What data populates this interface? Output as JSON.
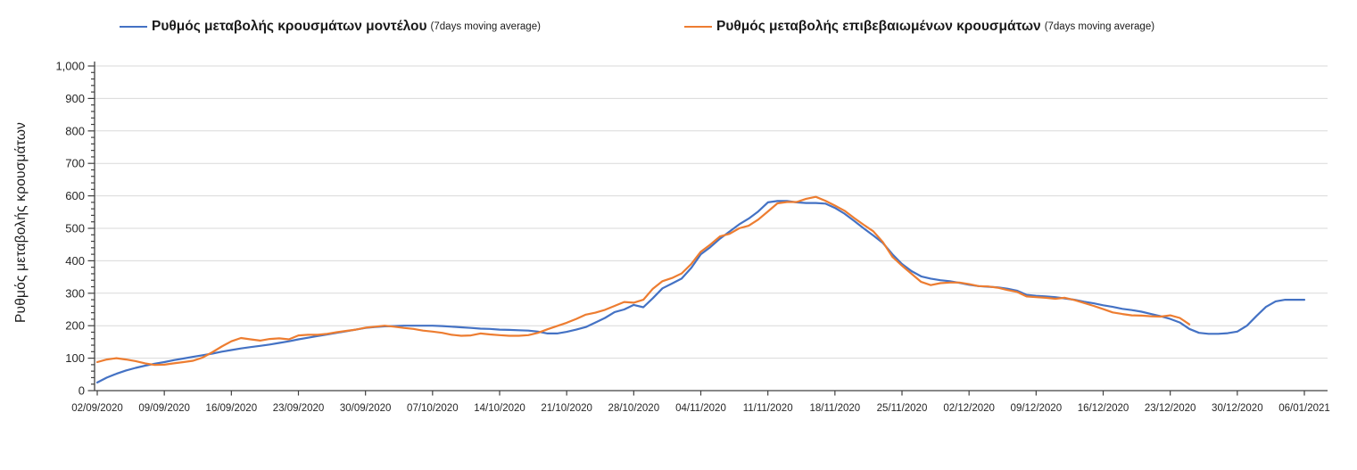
{
  "legend": {
    "items": [
      {
        "label": "Ρυθμός μεταβολής κρουσμάτων μοντέλου",
        "sub": "(7days moving average)",
        "color": "#4472C4"
      },
      {
        "label": "Ρυθμός μεταβολής επιβεβαιωμένων κρουσμάτων",
        "sub": "(7days moving average)",
        "color": "#ED7D31"
      }
    ]
  },
  "y_axis": {
    "title": "Ρυθμός μεταβολής κρουσμάτων",
    "tick_labels": [
      "0",
      "100",
      "200",
      "300",
      "400",
      "500",
      "600",
      "700",
      "800",
      "900",
      "1,000"
    ],
    "min": 0,
    "max": 1000,
    "major_step": 100,
    "minor_step": 20
  },
  "x_axis": {
    "tick_labels": [
      "02/09/2020",
      "09/09/2020",
      "16/09/2020",
      "23/09/2020",
      "30/09/2020",
      "07/10/2020",
      "14/10/2020",
      "21/10/2020",
      "28/10/2020",
      "04/11/2020",
      "11/11/2020",
      "18/11/2020",
      "25/11/2020",
      "02/12/2020",
      "09/12/2020",
      "16/12/2020",
      "23/12/2020",
      "30/12/2020",
      "06/01/2021"
    ]
  },
  "colors": {
    "model_line": "#4472C4",
    "confirmed_line": "#ED7D31",
    "grid": "#D9D9D9",
    "axis": "#404040",
    "text": "#262626"
  },
  "chart_data": {
    "type": "line",
    "title": "",
    "xlabel": "",
    "ylabel": "Ρυθμός μεταβολής κρουσμάτων",
    "ylim": [
      0,
      1000
    ],
    "grid": "horizontal-only",
    "legend_position": "top",
    "x": [
      "02/09/2020",
      "03/09/2020",
      "04/09/2020",
      "05/09/2020",
      "06/09/2020",
      "07/09/2020",
      "08/09/2020",
      "09/09/2020",
      "10/09/2020",
      "11/09/2020",
      "12/09/2020",
      "13/09/2020",
      "14/09/2020",
      "15/09/2020",
      "16/09/2020",
      "17/09/2020",
      "18/09/2020",
      "19/09/2020",
      "20/09/2020",
      "21/09/2020",
      "22/09/2020",
      "23/09/2020",
      "24/09/2020",
      "25/09/2020",
      "26/09/2020",
      "27/09/2020",
      "28/09/2020",
      "29/09/2020",
      "30/09/2020",
      "01/10/2020",
      "02/10/2020",
      "03/10/2020",
      "04/10/2020",
      "05/10/2020",
      "06/10/2020",
      "07/10/2020",
      "08/10/2020",
      "09/10/2020",
      "10/10/2020",
      "11/10/2020",
      "12/10/2020",
      "13/10/2020",
      "14/10/2020",
      "15/10/2020",
      "16/10/2020",
      "17/10/2020",
      "18/10/2020",
      "19/10/2020",
      "20/10/2020",
      "21/10/2020",
      "22/10/2020",
      "23/10/2020",
      "24/10/2020",
      "25/10/2020",
      "26/10/2020",
      "27/10/2020",
      "28/10/2020",
      "29/10/2020",
      "30/10/2020",
      "31/10/2020",
      "01/11/2020",
      "02/11/2020",
      "03/11/2020",
      "04/11/2020",
      "05/11/2020",
      "06/11/2020",
      "07/11/2020",
      "08/11/2020",
      "09/11/2020",
      "10/11/2020",
      "11/11/2020",
      "12/11/2020",
      "13/11/2020",
      "14/11/2020",
      "15/11/2020",
      "16/11/2020",
      "17/11/2020",
      "18/11/2020",
      "19/11/2020",
      "20/11/2020",
      "21/11/2020",
      "22/11/2020",
      "23/11/2020",
      "24/11/2020",
      "25/11/2020",
      "26/11/2020",
      "27/11/2020",
      "28/11/2020",
      "29/11/2020",
      "30/11/2020",
      "01/12/2020",
      "02/12/2020",
      "03/12/2020",
      "04/12/2020",
      "05/12/2020",
      "06/12/2020",
      "07/12/2020",
      "08/12/2020",
      "09/12/2020",
      "10/12/2020",
      "11/12/2020",
      "12/12/2020",
      "13/12/2020",
      "14/12/2020",
      "15/12/2020",
      "16/12/2020",
      "17/12/2020",
      "18/12/2020",
      "19/12/2020",
      "20/12/2020",
      "21/12/2020",
      "22/12/2020",
      "23/12/2020",
      "24/12/2020",
      "25/12/2020",
      "26/12/2020",
      "27/12/2020",
      "28/12/2020",
      "29/12/2020",
      "30/12/2020",
      "31/12/2020",
      "01/01/2021",
      "02/01/2021",
      "03/01/2021",
      "04/01/2021",
      "05/01/2021",
      "06/01/2021"
    ],
    "series": [
      {
        "name": "Ρυθμός μεταβολής κρουσμάτων μοντέλου (7days moving average)",
        "color": "#4472C4",
        "values": [
          25,
          40,
          52,
          62,
          70,
          77,
          83,
          88,
          94,
          99,
          104,
          109,
          114,
          120,
          125,
          130,
          134,
          138,
          142,
          147,
          152,
          158,
          163,
          168,
          173,
          178,
          183,
          188,
          193,
          196,
          198,
          199,
          200,
          200,
          200,
          200,
          199,
          197,
          195,
          193,
          191,
          190,
          188,
          187,
          186,
          185,
          182,
          176,
          176,
          181,
          188,
          196,
          210,
          224,
          242,
          250,
          264,
          257,
          285,
          315,
          330,
          345,
          378,
          420,
          442,
          468,
          490,
          512,
          530,
          552,
          580,
          584,
          584,
          580,
          578,
          578,
          576,
          563,
          545,
          523,
          500,
          478,
          455,
          420,
          390,
          368,
          352,
          345,
          340,
          337,
          332,
          326,
          322,
          320,
          318,
          314,
          308,
          295,
          292,
          290,
          288,
          284,
          280,
          274,
          269,
          263,
          258,
          252,
          248,
          243,
          236,
          229,
          221,
          210,
          190,
          178,
          175,
          175,
          177,
          182,
          200,
          230,
          258,
          275,
          280,
          280,
          280
        ]
      },
      {
        "name": "Ρυθμός μεταβολής επιβεβαιωμένων κρουσμάτων (7days moving average)",
        "color": "#ED7D31",
        "values": [
          88,
          96,
          100,
          96,
          91,
          84,
          79,
          80,
          84,
          88,
          92,
          102,
          118,
          136,
          152,
          162,
          158,
          154,
          159,
          161,
          158,
          170,
          172,
          172,
          175,
          180,
          184,
          188,
          194,
          197,
          200,
          197,
          193,
          190,
          185,
          182,
          178,
          172,
          169,
          170,
          176,
          173,
          171,
          169,
          169,
          171,
          178,
          189,
          199,
          209,
          221,
          234,
          240,
          249,
          261,
          273,
          271,
          280,
          314,
          337,
          347,
          361,
          390,
          428,
          450,
          475,
          483,
          500,
          508,
          527,
          552,
          577,
          581,
          581,
          591,
          597,
          585,
          570,
          554,
          532,
          511,
          491,
          458,
          412,
          385,
          360,
          335,
          325,
          331,
          333,
          333,
          328,
          322,
          321,
          317,
          310,
          304,
          290,
          288,
          286,
          283,
          286,
          279,
          270,
          261,
          251,
          241,
          236,
          232,
          231,
          229,
          228,
          232,
          224,
          204
        ]
      }
    ]
  }
}
